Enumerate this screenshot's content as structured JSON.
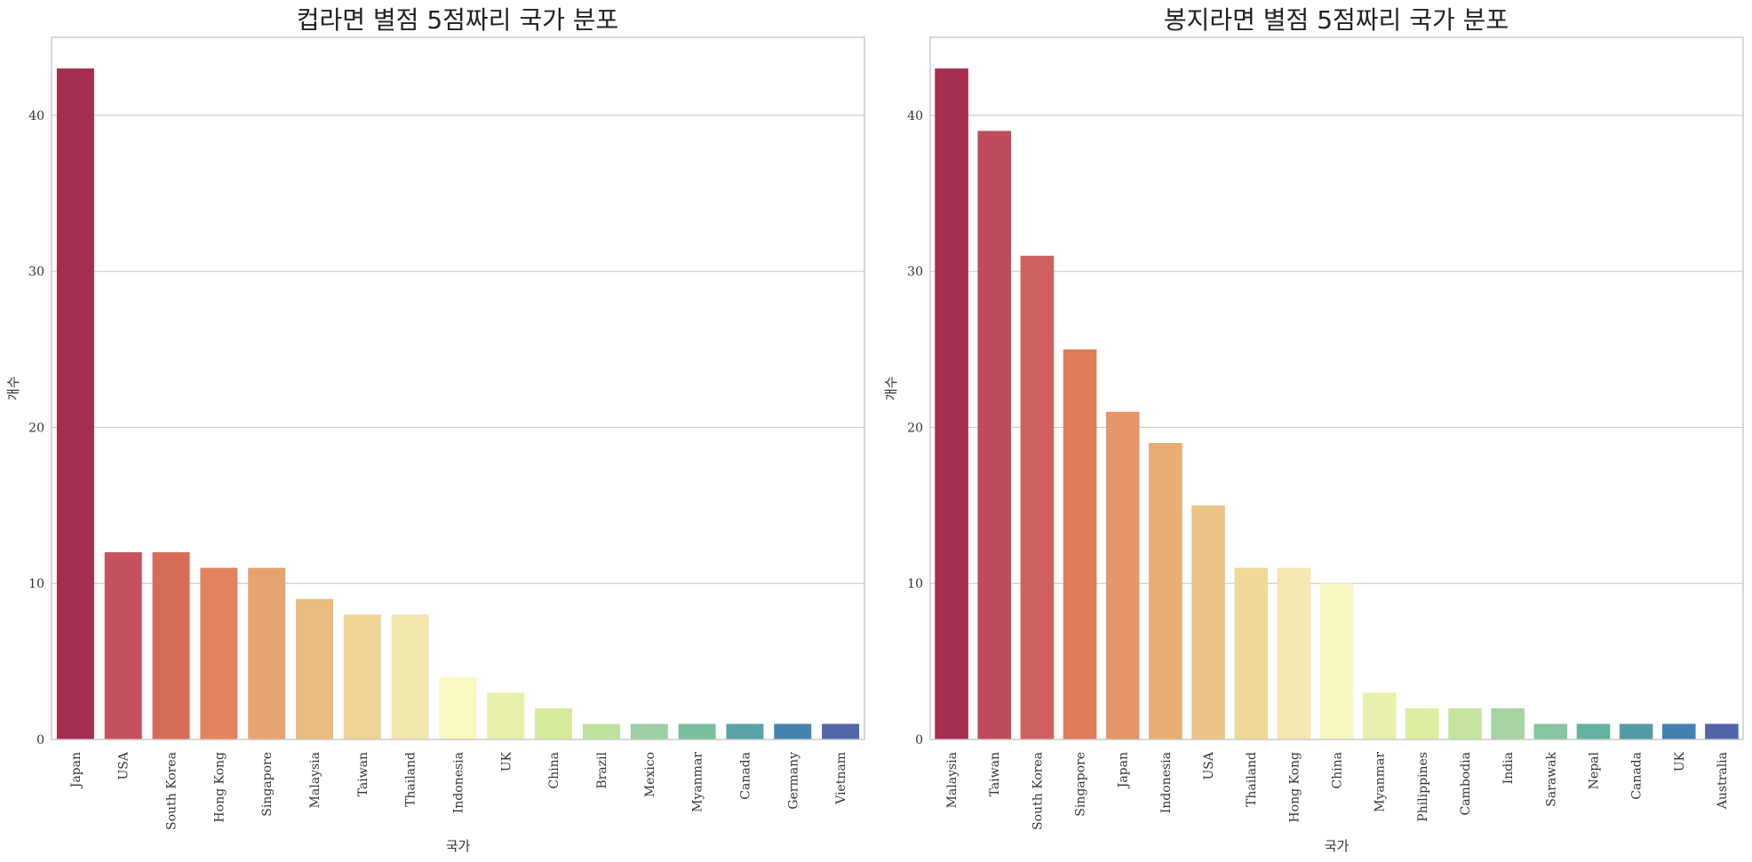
{
  "chart_data": [
    {
      "type": "bar",
      "title": "컵라면 별점 5점짜리 국가 분포",
      "xlabel": "국가",
      "ylabel": "개수",
      "ylim": [
        0,
        45
      ],
      "yticks": [
        0,
        10,
        20,
        30,
        40
      ],
      "grid": "y",
      "categories": [
        "Japan",
        "USA",
        "South Korea",
        "Hong Kong",
        "Singapore",
        "Malaysia",
        "Taiwan",
        "Thailand",
        "Indonesia",
        "UK",
        "China",
        "Brazil",
        "Mexico",
        "Myanmar",
        "Canada",
        "Germany",
        "Vietnam"
      ],
      "values": [
        43,
        12,
        12,
        11,
        11,
        9,
        8,
        8,
        4,
        3,
        2,
        1,
        1,
        1,
        1,
        1,
        1
      ],
      "colors": [
        "#a52d4f",
        "#c6525f",
        "#d66b58",
        "#e2825e",
        "#e7a36f",
        "#e9bc7f",
        "#efd397",
        "#f1e6ac",
        "#f8f8c1",
        "#e9f0ab",
        "#d6ea9c",
        "#bfe1a0",
        "#9dd0a4",
        "#7bbf9e",
        "#5ba2a6",
        "#4684ae",
        "#5366a8"
      ]
    },
    {
      "type": "bar",
      "title": "봉지라면 별점 5점짜리 국가 분포",
      "xlabel": "국가",
      "ylabel": "개수",
      "ylim": [
        0,
        45
      ],
      "yticks": [
        0,
        10,
        20,
        30,
        40
      ],
      "grid": "y",
      "categories": [
        "Malaysia",
        "Taiwan",
        "South Korea",
        "Singapore",
        "Japan",
        "Indonesia",
        "USA",
        "Thailand",
        "Hong Kong",
        "China",
        "Myanmar",
        "Philippines",
        "Cambodia",
        "India",
        "Sarawak",
        "Nepal",
        "Canada",
        "UK",
        "Australia"
      ],
      "values": [
        43,
        39,
        31,
        25,
        21,
        19,
        15,
        11,
        11,
        10,
        3,
        2,
        2,
        2,
        1,
        1,
        1,
        1,
        1
      ],
      "colors": [
        "#a52d4f",
        "#bf4b5c",
        "#cf615f",
        "#df7b58",
        "#e6966a",
        "#e8ad75",
        "#ecc487",
        "#f0d898",
        "#f4e7b0",
        "#f8f6c2",
        "#eaf0ad",
        "#dbed9f",
        "#c5e2a2",
        "#a7d4a3",
        "#86c59f",
        "#64b2a1",
        "#559aa8",
        "#4381b0",
        "#5264a8"
      ]
    }
  ]
}
